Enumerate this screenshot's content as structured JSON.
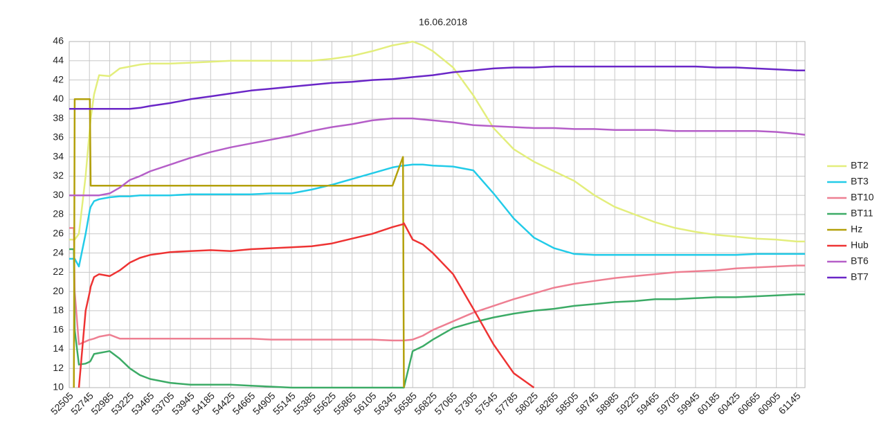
{
  "chart_data": {
    "type": "line",
    "title": "16.06.2018",
    "x": [
      52505,
      52560,
      52570,
      52620,
      52700,
      52750,
      52760,
      52800,
      52860,
      52985,
      53105,
      53225,
      53345,
      53465,
      53705,
      53945,
      54185,
      54425,
      54665,
      54905,
      55145,
      55385,
      55625,
      55865,
      56105,
      56345,
      56470,
      56480,
      56585,
      56705,
      56825,
      57065,
      57305,
      57545,
      57785,
      58025,
      58265,
      58505,
      58745,
      58985,
      59225,
      59465,
      59705,
      59945,
      60185,
      60425,
      60665,
      60905,
      61145,
      61245
    ],
    "series": [
      {
        "name": "BT2",
        "color": "#e3ee7c",
        "values": [
          25.4,
          25.4,
          25.4,
          26,
          32,
          37,
          38,
          40.5,
          42.5,
          42.4,
          43.2,
          43.4,
          43.6,
          43.7,
          43.7,
          43.8,
          43.9,
          44,
          44,
          44,
          44,
          44,
          44.2,
          44.5,
          45,
          45.6,
          45.8,
          45.8,
          46,
          45.6,
          45,
          43.3,
          40.4,
          37,
          34.8,
          33.5,
          32.5,
          31.5,
          30,
          28.8,
          28,
          27.2,
          26.6,
          26.2,
          25.9,
          25.7,
          25.5,
          25.4,
          25.2,
          25.2
        ]
      },
      {
        "name": "BT3",
        "color": "#22cbe8",
        "values": [
          23.4,
          23.4,
          23.4,
          22.6,
          26,
          28.5,
          28.8,
          29.4,
          29.6,
          29.8,
          29.9,
          29.9,
          30,
          30,
          30,
          30.1,
          30.1,
          30.1,
          30.1,
          30.2,
          30.2,
          30.6,
          31.1,
          31.7,
          32.3,
          32.9,
          33.1,
          33.1,
          33.2,
          33.2,
          33.1,
          33,
          32.6,
          30.2,
          27.6,
          25.6,
          24.5,
          23.9,
          23.8,
          23.8,
          23.8,
          23.8,
          23.8,
          23.8,
          23.8,
          23.8,
          23.9,
          23.9,
          23.9,
          23.9
        ]
      },
      {
        "name": "BT10",
        "color": "#ee7f92",
        "values": [
          26.6,
          26.6,
          20,
          14.5,
          14.8,
          15,
          15,
          15.1,
          15.3,
          15.5,
          15.1,
          15.1,
          15.1,
          15.1,
          15.1,
          15.1,
          15.1,
          15.1,
          15.1,
          15,
          15,
          15,
          15,
          15,
          15,
          14.9,
          14.9,
          14.9,
          15,
          15.4,
          16,
          16.9,
          17.8,
          18.5,
          19.2,
          19.8,
          20.4,
          20.8,
          21.1,
          21.4,
          21.6,
          21.8,
          22,
          22.1,
          22.2,
          22.4,
          22.5,
          22.6,
          22.7,
          22.7
        ]
      },
      {
        "name": "BT11",
        "color": "#3cab66",
        "values": [
          24.4,
          24.4,
          16,
          12.4,
          12.5,
          12.7,
          12.8,
          13.5,
          13.6,
          13.8,
          13,
          12,
          11.3,
          10.9,
          10.5,
          10.3,
          10.3,
          10.3,
          10.2,
          10.1,
          10,
          10,
          10,
          10,
          10,
          10,
          10,
          10,
          13.8,
          14.3,
          15,
          16.2,
          16.8,
          17.3,
          17.7,
          18,
          18.2,
          18.5,
          18.7,
          18.9,
          19,
          19.2,
          19.2,
          19.3,
          19.4,
          19.4,
          19.5,
          19.6,
          19.7,
          19.7
        ]
      },
      {
        "name": "Hz",
        "color": "#b3a00a",
        "values": [
          null,
          10,
          40,
          40,
          40,
          40,
          31,
          31,
          31,
          31,
          31,
          31,
          31,
          31,
          31,
          31,
          31,
          31,
          31,
          31,
          31,
          31,
          31,
          31,
          31,
          31,
          34,
          10,
          null,
          null,
          null,
          null,
          null,
          null,
          null,
          null,
          null,
          null,
          null,
          null,
          null,
          null,
          null,
          null,
          null,
          null,
          null,
          null,
          null,
          null
        ]
      },
      {
        "name": "Hub",
        "color": "#ee3333",
        "values": [
          null,
          null,
          null,
          10,
          18,
          20,
          20.5,
          21.5,
          21.8,
          21.6,
          22.2,
          23,
          23.5,
          23.8,
          24.1,
          24.2,
          24.3,
          24.2,
          24.4,
          24.5,
          24.6,
          24.7,
          25,
          25.5,
          26,
          26.7,
          27,
          27.1,
          25.4,
          24.9,
          24,
          21.8,
          18.2,
          14.5,
          11.5,
          10,
          null,
          null,
          null,
          null,
          null,
          null,
          null,
          null,
          null,
          null,
          null,
          null,
          null,
          null
        ]
      },
      {
        "name": "BT6",
        "color": "#b55ec8",
        "values": [
          30,
          30,
          30,
          30,
          30,
          30,
          30,
          30,
          30,
          30.2,
          30.8,
          31.6,
          32,
          32.5,
          33.2,
          33.9,
          34.5,
          35,
          35.4,
          35.8,
          36.2,
          36.7,
          37.1,
          37.4,
          37.8,
          38,
          38,
          38,
          38,
          37.9,
          37.8,
          37.6,
          37.3,
          37.2,
          37.1,
          37,
          37,
          36.9,
          36.9,
          36.8,
          36.8,
          36.8,
          36.7,
          36.7,
          36.7,
          36.7,
          36.7,
          36.6,
          36.4,
          36.3
        ]
      },
      {
        "name": "BT7",
        "color": "#6a26c7",
        "values": [
          39,
          39,
          39,
          39,
          39,
          39,
          39,
          39,
          39,
          39,
          39,
          39,
          39.1,
          39.3,
          39.6,
          40,
          40.3,
          40.6,
          40.9,
          41.1,
          41.3,
          41.5,
          41.7,
          41.8,
          42,
          42.1,
          42.2,
          42.2,
          42.3,
          42.4,
          42.5,
          42.8,
          43,
          43.2,
          43.3,
          43.3,
          43.4,
          43.4,
          43.4,
          43.4,
          43.4,
          43.4,
          43.4,
          43.4,
          43.3,
          43.3,
          43.2,
          43.1,
          43,
          43
        ]
      }
    ],
    "xlim": [
      52505,
      61245
    ],
    "xticks": [
      52505,
      52745,
      52985,
      53225,
      53465,
      53705,
      53945,
      54185,
      54425,
      54665,
      54905,
      55145,
      55385,
      55625,
      55865,
      56105,
      56345,
      56585,
      56825,
      57065,
      57305,
      57545,
      57785,
      58025,
      58265,
      58505,
      58745,
      58985,
      59225,
      59465,
      59705,
      59945,
      60185,
      60425,
      60665,
      60905,
      61145
    ],
    "ylim": [
      10,
      46
    ],
    "yticks": [
      10,
      12,
      14,
      16,
      18,
      20,
      22,
      24,
      26,
      28,
      30,
      32,
      34,
      36,
      38,
      40,
      42,
      44,
      46
    ],
    "grid": true,
    "legend": "right"
  }
}
